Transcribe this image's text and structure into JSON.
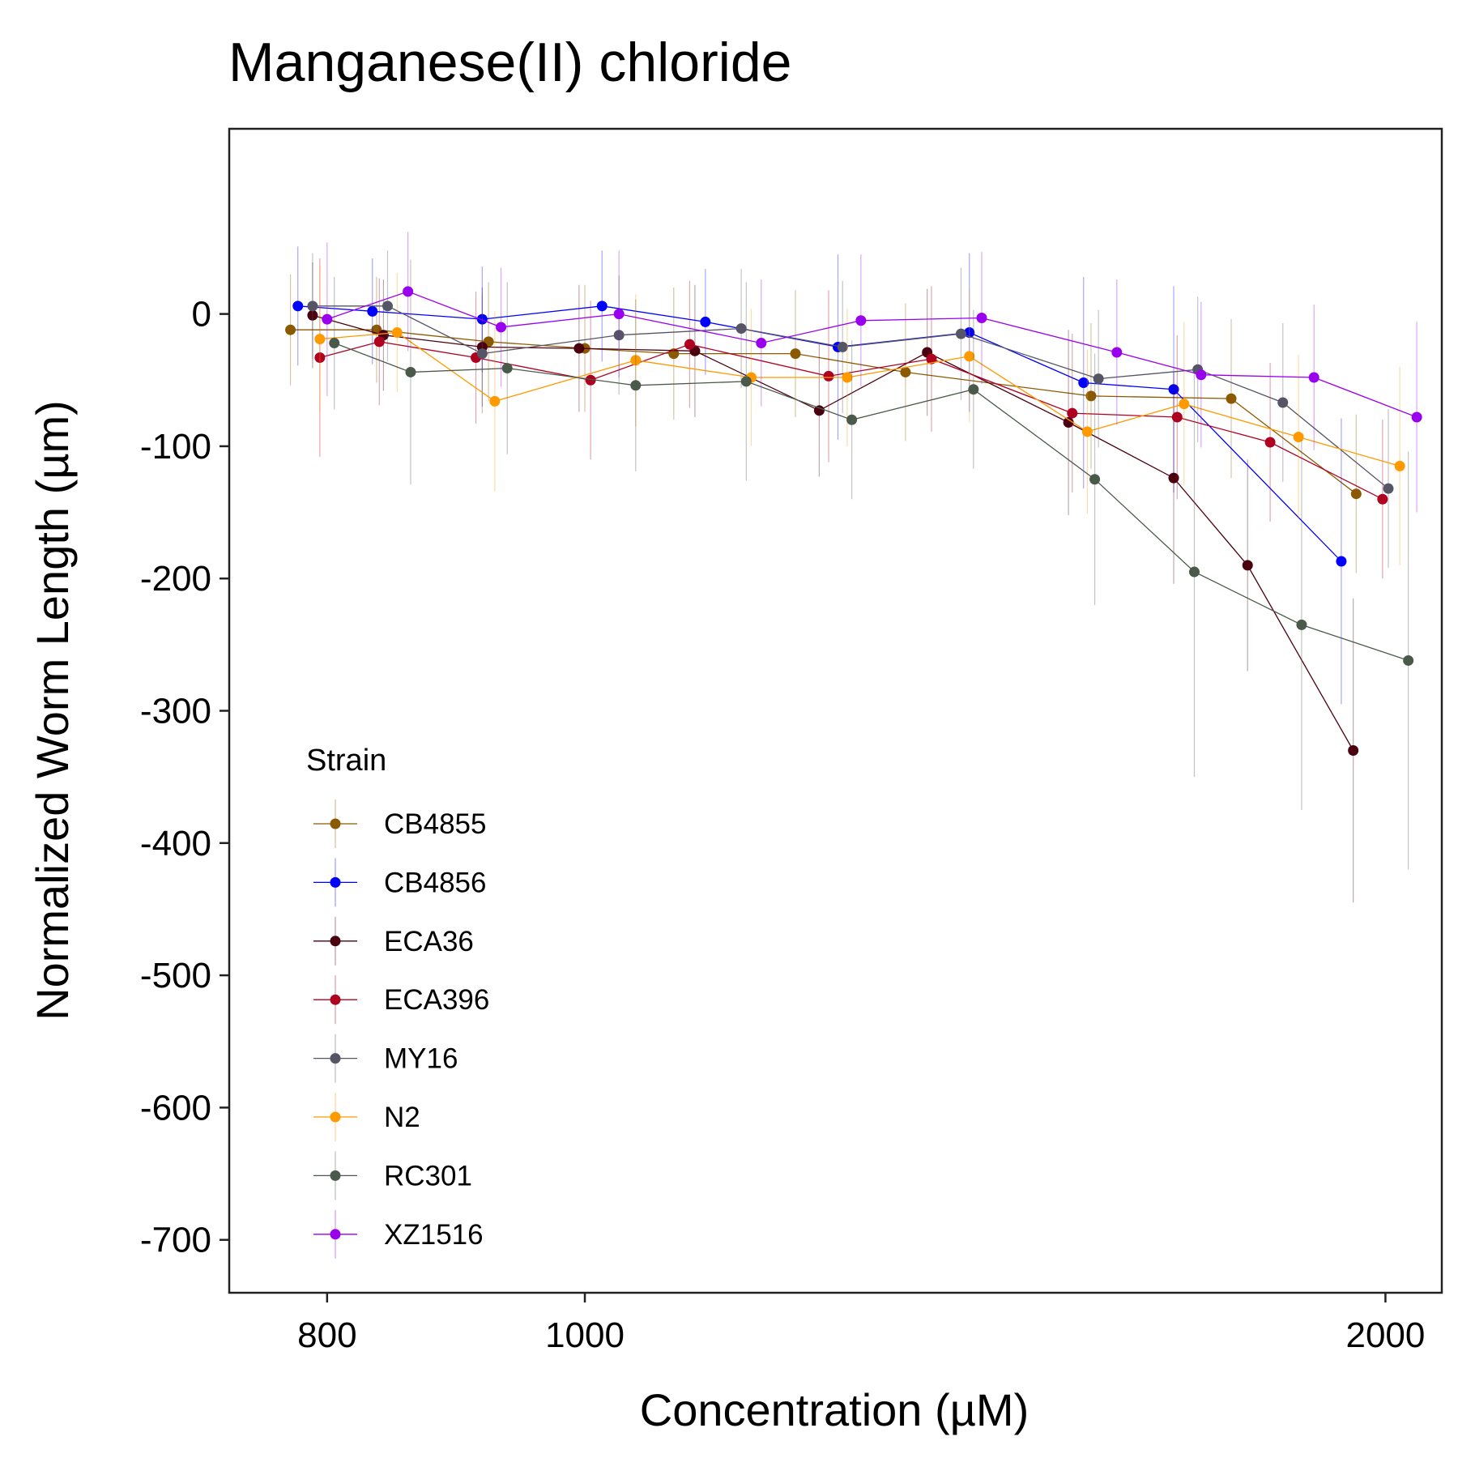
{
  "chart_data": {
    "type": "line",
    "title": "Manganese(II) chloride",
    "xlabel": "Concentration (µM)",
    "ylabel": "Normalized Worm Length (µm)",
    "x_scale": "log",
    "xlim": [
      735,
      2100
    ],
    "ylim": [
      -740,
      140
    ],
    "x_ticks": [
      800,
      1000,
      2000
    ],
    "y_ticks": [
      0,
      -100,
      -200,
      -300,
      -400,
      -500,
      -600,
      -700
    ],
    "grid": false,
    "legend_title": "Strain",
    "legend_position": "bottom-left",
    "series": [
      {
        "name": "CB4855",
        "color": "#8B5A00",
        "x": [
          775,
          835,
          920,
          1000,
          1080,
          1200,
          1320,
          1550,
          1750,
          1950
        ],
        "y": [
          -12,
          -12,
          -21,
          -26,
          -30,
          -30,
          -44,
          -62,
          -64,
          -136
        ],
        "err": [
          42,
          40,
          45,
          48,
          50,
          48,
          52,
          55,
          60,
          60
        ]
      },
      {
        "name": "CB4856",
        "color": "#0000FF",
        "x": [
          780,
          832,
          915,
          1015,
          1110,
          1245,
          1395,
          1540,
          1665,
          1925
        ],
        "y": [
          6,
          2,
          -4,
          6,
          -6,
          -25,
          -14,
          -52,
          -57,
          -187
        ],
        "err": [
          45,
          40,
          40,
          42,
          40,
          70,
          60,
          80,
          78,
          108
        ]
      },
      {
        "name": "ECA36",
        "color": "#4B0010",
        "x": [
          790,
          840,
          915,
          995,
          1100,
          1225,
          1345,
          1520,
          1665,
          1775,
          1945
        ],
        "y": [
          -1,
          -16,
          -25,
          -26,
          -28,
          -73,
          -29,
          -82,
          -124,
          -190,
          -330
        ],
        "err": [
          40,
          42,
          45,
          48,
          50,
          50,
          48,
          70,
          80,
          80,
          115
        ]
      },
      {
        "name": "ECA396",
        "color": "#B00020",
        "x": [
          795,
          837,
          910,
          1005,
          1095,
          1235,
          1350,
          1525,
          1670,
          1810,
          1995
        ],
        "y": [
          -33,
          -21,
          -33,
          -50,
          -23,
          -47,
          -34,
          -75,
          -78,
          -97,
          -140
        ],
        "err": [
          75,
          48,
          50,
          60,
          48,
          65,
          55,
          60,
          62,
          60,
          60
        ]
      },
      {
        "name": "MY16",
        "color": "#555566",
        "x": [
          790,
          843,
          915,
          1030,
          1145,
          1250,
          1385,
          1560,
          1700,
          1830,
          2005
        ],
        "y": [
          6,
          6,
          -30,
          -16,
          -11,
          -25,
          -15,
          -49,
          -42,
          -67,
          -132
        ],
        "err": [
          40,
          42,
          45,
          45,
          45,
          50,
          50,
          52,
          55,
          60,
          60
        ]
      },
      {
        "name": "N2",
        "color": "#FF9900",
        "x": [
          795,
          850,
          925,
          1045,
          1155,
          1255,
          1395,
          1545,
          1680,
          1855,
          2025
        ],
        "y": [
          -19,
          -14,
          -66,
          -35,
          -48,
          -48,
          -32,
          -89,
          -68,
          -93,
          -115
        ],
        "err": [
          55,
          45,
          68,
          50,
          52,
          52,
          50,
          62,
          62,
          62,
          75
        ]
      },
      {
        "name": "RC301",
        "color": "#4A5A4A",
        "x": [
          805,
          860,
          935,
          1045,
          1150,
          1260,
          1400,
          1555,
          1695,
          1860,
          2040
        ],
        "y": [
          -22,
          -44,
          -41,
          -54,
          -51,
          -80,
          -57,
          -125,
          -195,
          -235,
          -262
        ],
        "err": [
          50,
          85,
          65,
          65,
          75,
          60,
          60,
          95,
          155,
          140,
          158
        ]
      },
      {
        "name": "XZ1516",
        "color": "#9900EE",
        "x": [
          800,
          858,
          930,
          1030,
          1165,
          1270,
          1410,
          1585,
          1705,
          1880,
          2055
        ],
        "y": [
          -4,
          17,
          -10,
          0,
          -22,
          -5,
          -3,
          -29,
          -46,
          -48,
          -78
        ],
        "err": [
          58,
          45,
          45,
          48,
          48,
          50,
          50,
          55,
          55,
          55,
          72
        ]
      }
    ]
  }
}
